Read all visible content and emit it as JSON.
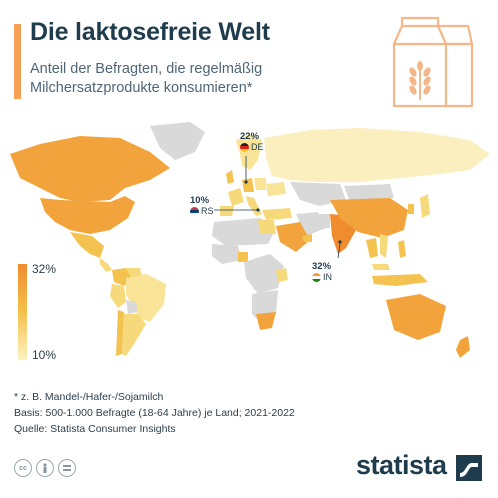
{
  "header": {
    "title": "Die laktosefreie Welt",
    "subtitle": "Anteil der Befragten, die regelmäßig Milchersatzprodukte konsumieren*"
  },
  "icons": {
    "carton": "milk-carton-wheat-icon",
    "license": [
      "cc-icon",
      "person-icon",
      "equals-icon"
    ],
    "brand": "statista-logo-icon"
  },
  "legend": {
    "max_label": "32%",
    "min_label": "10%",
    "colors": {
      "high": "#f08c2e",
      "mid": "#f4c04a",
      "low": "#fdf3c4",
      "no_data": "#d9d9d9"
    }
  },
  "callouts": [
    {
      "pct": "22%",
      "code": "DE"
    },
    {
      "pct": "10%",
      "code": "RS"
    },
    {
      "pct": "32%",
      "code": "IN"
    }
  ],
  "footer": {
    "note1": "* z. B. Mandel-/Hafer-/Sojamilch",
    "note2": "Basis: 500-1.000 Befragte (18-64 Jahre) je Land; 2021-2022",
    "note3": "Quelle: Statista Consumer Insights",
    "brand": "statista"
  },
  "colors": {
    "accent": "#f5a054",
    "title": "#1f3c4e",
    "brand": "#1f3c4e"
  }
}
